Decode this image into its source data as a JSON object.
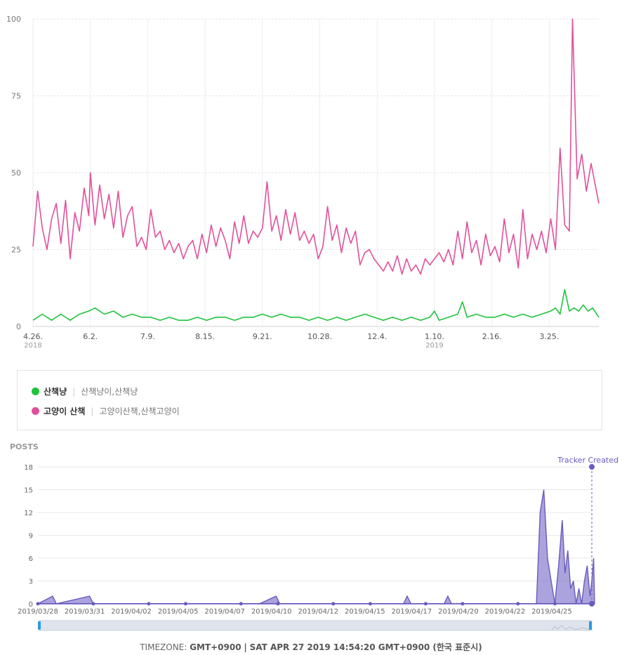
{
  "chart_data": [
    {
      "type": "line",
      "yticks": [
        0,
        25,
        50,
        75,
        100
      ],
      "ytick_labels": [
        "0",
        "25",
        "50",
        "75",
        "100"
      ],
      "ylim": [
        0,
        100
      ],
      "xlim": [
        "2018-04-26",
        "2019-04-26"
      ],
      "x_ticks": [
        {
          "date": "2018-04-26",
          "label": "4.26.",
          "sub": "2018"
        },
        {
          "date": "2018-06-02",
          "label": "6.2.",
          "sub": ""
        },
        {
          "date": "2018-07-09",
          "label": "7.9.",
          "sub": ""
        },
        {
          "date": "2018-08-15",
          "label": "8.15.",
          "sub": ""
        },
        {
          "date": "2018-09-21",
          "label": "9.21.",
          "sub": ""
        },
        {
          "date": "2018-10-28",
          "label": "10.28.",
          "sub": ""
        },
        {
          "date": "2018-12-04",
          "label": "12.4.",
          "sub": ""
        },
        {
          "date": "2019-01-10",
          "label": "1.10.",
          "sub": "2019"
        },
        {
          "date": "2019-02-16",
          "label": "2.16.",
          "sub": ""
        },
        {
          "date": "2019-03-25",
          "label": "3.25.",
          "sub": ""
        }
      ],
      "grid": true,
      "series": [
        {
          "name": "고양이 산책",
          "keywords": "고양이산책,산책고양이",
          "color": "#e0509a",
          "points": [
            [
              "2018-04-26",
              26
            ],
            [
              "2018-04-29",
              44
            ],
            [
              "2018-05-02",
              32
            ],
            [
              "2018-05-05",
              25
            ],
            [
              "2018-05-08",
              35
            ],
            [
              "2018-05-11",
              40
            ],
            [
              "2018-05-14",
              27
            ],
            [
              "2018-05-17",
              41
            ],
            [
              "2018-05-20",
              22
            ],
            [
              "2018-05-23",
              37
            ],
            [
              "2018-05-26",
              31
            ],
            [
              "2018-05-29",
              45
            ],
            [
              "2018-06-01",
              36
            ],
            [
              "2018-06-02",
              50
            ],
            [
              "2018-06-05",
              33
            ],
            [
              "2018-06-08",
              46
            ],
            [
              "2018-06-11",
              35
            ],
            [
              "2018-06-14",
              43
            ],
            [
              "2018-06-17",
              32
            ],
            [
              "2018-06-20",
              44
            ],
            [
              "2018-06-23",
              29
            ],
            [
              "2018-06-26",
              36
            ],
            [
              "2018-06-29",
              39
            ],
            [
              "2018-07-02",
              26
            ],
            [
              "2018-07-05",
              29
            ],
            [
              "2018-07-08",
              25
            ],
            [
              "2018-07-11",
              38
            ],
            [
              "2018-07-14",
              29
            ],
            [
              "2018-07-17",
              31
            ],
            [
              "2018-07-20",
              25
            ],
            [
              "2018-07-23",
              28
            ],
            [
              "2018-07-26",
              24
            ],
            [
              "2018-07-29",
              27
            ],
            [
              "2018-08-01",
              22
            ],
            [
              "2018-08-04",
              26
            ],
            [
              "2018-08-07",
              28
            ],
            [
              "2018-08-10",
              22
            ],
            [
              "2018-08-13",
              30
            ],
            [
              "2018-08-16",
              24
            ],
            [
              "2018-08-19",
              33
            ],
            [
              "2018-08-22",
              26
            ],
            [
              "2018-08-25",
              32
            ],
            [
              "2018-08-28",
              28
            ],
            [
              "2018-08-31",
              22
            ],
            [
              "2018-09-03",
              34
            ],
            [
              "2018-09-06",
              27
            ],
            [
              "2018-09-09",
              36
            ],
            [
              "2018-09-12",
              27
            ],
            [
              "2018-09-15",
              31
            ],
            [
              "2018-09-18",
              29
            ],
            [
              "2018-09-21",
              32
            ],
            [
              "2018-09-24",
              47
            ],
            [
              "2018-09-27",
              31
            ],
            [
              "2018-09-30",
              36
            ],
            [
              "2018-10-03",
              28
            ],
            [
              "2018-10-06",
              38
            ],
            [
              "2018-10-09",
              30
            ],
            [
              "2018-10-12",
              37
            ],
            [
              "2018-10-15",
              28
            ],
            [
              "2018-10-18",
              31
            ],
            [
              "2018-10-21",
              27
            ],
            [
              "2018-10-24",
              30
            ],
            [
              "2018-10-27",
              22
            ],
            [
              "2018-10-30",
              26
            ],
            [
              "2018-11-02",
              39
            ],
            [
              "2018-11-05",
              28
            ],
            [
              "2018-11-08",
              33
            ],
            [
              "2018-11-11",
              24
            ],
            [
              "2018-11-14",
              32
            ],
            [
              "2018-11-17",
              27
            ],
            [
              "2018-11-20",
              31
            ],
            [
              "2018-11-23",
              20
            ],
            [
              "2018-11-26",
              24
            ],
            [
              "2018-11-29",
              25
            ],
            [
              "2018-12-02",
              22
            ],
            [
              "2018-12-05",
              20
            ],
            [
              "2018-12-08",
              18
            ],
            [
              "2018-12-11",
              21
            ],
            [
              "2018-12-14",
              18
            ],
            [
              "2018-12-17",
              23
            ],
            [
              "2018-12-20",
              17
            ],
            [
              "2018-12-23",
              22
            ],
            [
              "2018-12-26",
              18
            ],
            [
              "2018-12-29",
              20
            ],
            [
              "2019-01-01",
              17
            ],
            [
              "2019-01-04",
              22
            ],
            [
              "2019-01-07",
              20
            ],
            [
              "2019-01-10",
              22
            ],
            [
              "2019-01-13",
              24
            ],
            [
              "2019-01-16",
              21
            ],
            [
              "2019-01-19",
              25
            ],
            [
              "2019-01-22",
              20
            ],
            [
              "2019-01-25",
              31
            ],
            [
              "2019-01-28",
              22
            ],
            [
              "2019-01-31",
              34
            ],
            [
              "2019-02-03",
              24
            ],
            [
              "2019-02-06",
              28
            ],
            [
              "2019-02-09",
              20
            ],
            [
              "2019-02-12",
              30
            ],
            [
              "2019-02-15",
              23
            ],
            [
              "2019-02-18",
              26
            ],
            [
              "2019-02-21",
              21
            ],
            [
              "2019-02-24",
              35
            ],
            [
              "2019-02-27",
              24
            ],
            [
              "2019-03-02",
              30
            ],
            [
              "2019-03-05",
              19
            ],
            [
              "2019-03-08",
              38
            ],
            [
              "2019-03-11",
              22
            ],
            [
              "2019-03-14",
              30
            ],
            [
              "2019-03-17",
              25
            ],
            [
              "2019-03-20",
              31
            ],
            [
              "2019-03-23",
              24
            ],
            [
              "2019-03-26",
              35
            ],
            [
              "2019-03-29",
              25
            ],
            [
              "2019-04-01",
              58
            ],
            [
              "2019-04-04",
              33
            ],
            [
              "2019-04-07",
              31
            ],
            [
              "2019-04-09",
              100
            ],
            [
              "2019-04-12",
              48
            ],
            [
              "2019-04-15",
              56
            ],
            [
              "2019-04-18",
              44
            ],
            [
              "2019-04-21",
              53
            ],
            [
              "2019-04-26",
              40
            ]
          ]
        },
        {
          "name": "산책냥",
          "keywords": "산책냥이,산책냥",
          "color": "#1fc33c",
          "points": [
            [
              "2018-04-26",
              2
            ],
            [
              "2018-05-02",
              4
            ],
            [
              "2018-05-08",
              2
            ],
            [
              "2018-05-14",
              4
            ],
            [
              "2018-05-20",
              2
            ],
            [
              "2018-05-26",
              4
            ],
            [
              "2018-06-01",
              5
            ],
            [
              "2018-06-05",
              6
            ],
            [
              "2018-06-11",
              4
            ],
            [
              "2018-06-17",
              5
            ],
            [
              "2018-06-23",
              3
            ],
            [
              "2018-06-29",
              4
            ],
            [
              "2018-07-05",
              3
            ],
            [
              "2018-07-11",
              3
            ],
            [
              "2018-07-17",
              2
            ],
            [
              "2018-07-23",
              3
            ],
            [
              "2018-07-29",
              2
            ],
            [
              "2018-08-04",
              2
            ],
            [
              "2018-08-10",
              3
            ],
            [
              "2018-08-16",
              2
            ],
            [
              "2018-08-22",
              3
            ],
            [
              "2018-08-28",
              3
            ],
            [
              "2018-09-03",
              2
            ],
            [
              "2018-09-09",
              3
            ],
            [
              "2018-09-15",
              3
            ],
            [
              "2018-09-21",
              4
            ],
            [
              "2018-09-27",
              3
            ],
            [
              "2018-10-03",
              4
            ],
            [
              "2018-10-09",
              3
            ],
            [
              "2018-10-15",
              3
            ],
            [
              "2018-10-21",
              2
            ],
            [
              "2018-10-27",
              3
            ],
            [
              "2018-11-02",
              2
            ],
            [
              "2018-11-08",
              3
            ],
            [
              "2018-11-14",
              2
            ],
            [
              "2018-11-20",
              3
            ],
            [
              "2018-11-26",
              4
            ],
            [
              "2018-12-02",
              3
            ],
            [
              "2018-12-08",
              2
            ],
            [
              "2018-12-14",
              3
            ],
            [
              "2018-12-20",
              2
            ],
            [
              "2018-12-26",
              3
            ],
            [
              "2019-01-01",
              2
            ],
            [
              "2019-01-07",
              3
            ],
            [
              "2019-01-10",
              5
            ],
            [
              "2019-01-13",
              2
            ],
            [
              "2019-01-19",
              3
            ],
            [
              "2019-01-25",
              4
            ],
            [
              "2019-01-28",
              8
            ],
            [
              "2019-01-31",
              3
            ],
            [
              "2019-02-06",
              4
            ],
            [
              "2019-02-12",
              3
            ],
            [
              "2019-02-18",
              3
            ],
            [
              "2019-02-24",
              4
            ],
            [
              "2019-03-02",
              3
            ],
            [
              "2019-03-08",
              4
            ],
            [
              "2019-03-14",
              3
            ],
            [
              "2019-03-20",
              4
            ],
            [
              "2019-03-26",
              5
            ],
            [
              "2019-03-29",
              6
            ],
            [
              "2019-04-01",
              4
            ],
            [
              "2019-04-04",
              12
            ],
            [
              "2019-04-07",
              5
            ],
            [
              "2019-04-10",
              6
            ],
            [
              "2019-04-13",
              5
            ],
            [
              "2019-04-16",
              7
            ],
            [
              "2019-04-19",
              5
            ],
            [
              "2019-04-22",
              6
            ],
            [
              "2019-04-26",
              3
            ]
          ]
        }
      ]
    },
    {
      "type": "area",
      "title": "POSTS",
      "yticks": [
        0,
        3,
        6,
        9,
        12,
        15,
        18
      ],
      "ylim": [
        0,
        18
      ],
      "xlim": [
        "2019-03-28",
        "2019-04-27"
      ],
      "x_tick_labels": [
        "2019/03/28",
        "2019/03/31",
        "2019/04/02",
        "2019/04/05",
        "2019/04/07",
        "2019/04/10",
        "2019/04/12",
        "2019/04/15",
        "2019/04/17",
        "2019/04/20",
        "2019/04/22",
        "2019/04/25"
      ],
      "marker_dates": [
        "2019-03-28",
        "2019-03-31",
        "2019-04-03",
        "2019-04-05",
        "2019-04-08",
        "2019-04-10",
        "2019-04-13",
        "2019-04-15",
        "2019-04-18",
        "2019-04-20",
        "2019-04-23",
        "2019-04-25",
        "2019-04-27"
      ],
      "annotation": {
        "label": "Tracker Created",
        "date": "2019-04-27",
        "value": 18
      },
      "series": [
        {
          "color": "#6a5bbf",
          "points": [
            [
              "2019-03-28",
              0
            ],
            [
              "2019-03-28.8",
              1
            ],
            [
              "2019-03-29",
              0
            ],
            [
              "2019-03-30.8",
              1
            ],
            [
              "2019-03-31",
              0
            ],
            [
              "2019-04-09",
              0
            ],
            [
              "2019-04-09.9",
              1
            ],
            [
              "2019-04-10.1",
              0
            ],
            [
              "2019-04-16.8",
              0
            ],
            [
              "2019-04-17",
              1
            ],
            [
              "2019-04-17.2",
              0
            ],
            [
              "2019-04-19",
              0
            ],
            [
              "2019-04-19.2",
              1
            ],
            [
              "2019-04-19.4",
              0
            ],
            [
              "2019-04-24",
              0
            ],
            [
              "2019-04-24.2",
              12
            ],
            [
              "2019-04-24.4",
              15
            ],
            [
              "2019-04-24.6",
              6
            ],
            [
              "2019-04-24.8",
              3
            ],
            [
              "2019-04-25",
              0
            ],
            [
              "2019-04-25.2",
              5
            ],
            [
              "2019-04-25.4",
              11
            ],
            [
              "2019-04-25.55",
              4
            ],
            [
              "2019-04-25.7",
              7
            ],
            [
              "2019-04-25.85",
              2
            ],
            [
              "2019-04-26",
              3
            ],
            [
              "2019-04-26.15",
              0
            ],
            [
              "2019-04-26.3",
              2
            ],
            [
              "2019-04-26.45",
              0
            ],
            [
              "2019-04-26.6",
              3
            ],
            [
              "2019-04-26.75",
              5
            ],
            [
              "2019-04-26.9",
              1
            ],
            [
              "2019-04-27",
              3
            ],
            [
              "2019-04-27.1",
              6
            ],
            [
              "2019-04-27.15",
              0
            ]
          ]
        }
      ]
    }
  ],
  "legend": [
    {
      "name": "산책냥",
      "keywords": "산책냥이,산책냥",
      "color": "#1fc33c"
    },
    {
      "name": "고양이 산책",
      "keywords": "고양이산책,산책고양이",
      "color": "#e0509a"
    }
  ],
  "footer": {
    "timezone_label": "TIMEZONE:",
    "timezone_value": "GMT+0900",
    "separator": "|",
    "datetime": "SAT APR 27 2019 14:54:20 GMT+0900 (한국 표준시)"
  }
}
